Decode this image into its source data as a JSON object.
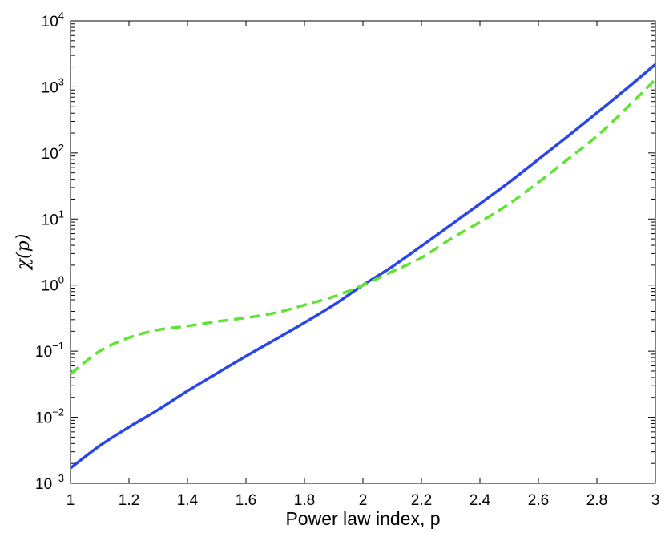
{
  "chart_data": {
    "type": "line",
    "title": "",
    "xlabel": "Power law index, p",
    "ylabel": "χ(p)",
    "xlim": [
      1,
      3
    ],
    "ylim": [
      0.001,
      10000
    ],
    "yscale": "log",
    "grid": false,
    "legend": "none",
    "xticks": [
      "1",
      "1.2",
      "1.4",
      "1.6",
      "1.8",
      "2",
      "2.2",
      "2.4",
      "2.6",
      "2.8",
      "3"
    ],
    "yticks": [
      {
        "base": "10",
        "exp": "−3"
      },
      {
        "base": "10",
        "exp": "−2"
      },
      {
        "base": "10",
        "exp": "−1"
      },
      {
        "base": "10",
        "exp": "0"
      },
      {
        "base": "10",
        "exp": "1"
      },
      {
        "base": "10",
        "exp": "2"
      },
      {
        "base": "10",
        "exp": "3"
      },
      {
        "base": "10",
        "exp": "4"
      }
    ],
    "series": [
      {
        "color": "#2a45e8",
        "style": "solid",
        "x": [
          1.0,
          1.1,
          1.2,
          1.3,
          1.4,
          1.5,
          1.6,
          1.7,
          1.8,
          1.9,
          2.0,
          2.1,
          2.2,
          2.3,
          2.4,
          2.5,
          2.6,
          2.7,
          2.8,
          2.9,
          3.0
        ],
        "y": [
          0.0017,
          0.0037,
          0.0071,
          0.013,
          0.025,
          0.046,
          0.084,
          0.15,
          0.27,
          0.5,
          1.0,
          1.9,
          3.9,
          8.1,
          17,
          36,
          80,
          178,
          405,
          930,
          2200
        ]
      },
      {
        "color": "#5ee62e",
        "style": "dashed",
        "x": [
          1.0,
          1.1,
          1.2,
          1.3,
          1.4,
          1.5,
          1.6,
          1.7,
          1.8,
          1.9,
          2.0,
          2.1,
          2.2,
          2.3,
          2.4,
          2.5,
          2.6,
          2.7,
          2.8,
          2.9,
          3.0
        ],
        "y": [
          0.045,
          0.1,
          0.16,
          0.21,
          0.24,
          0.28,
          0.32,
          0.38,
          0.5,
          0.67,
          1.0,
          1.6,
          2.6,
          5.0,
          9.0,
          17,
          36,
          80,
          180,
          470,
          1300
        ]
      }
    ]
  }
}
